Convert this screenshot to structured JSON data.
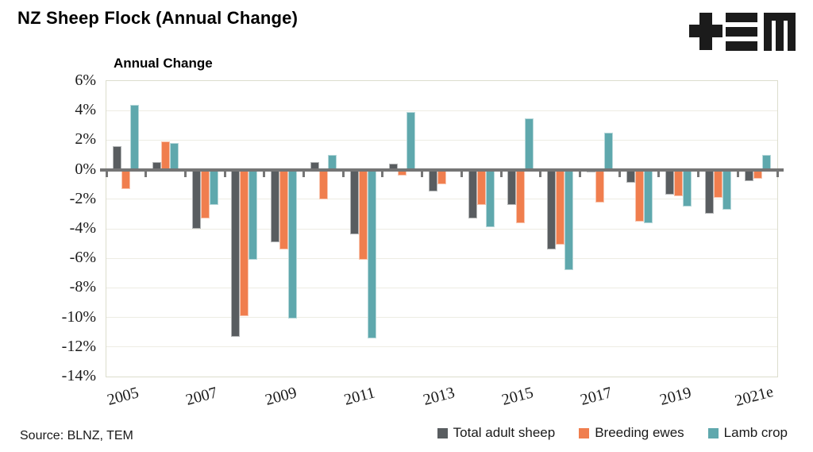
{
  "page": {
    "title": "NZ Sheep Flock (Annual Change)",
    "source": "Source: BLNZ, TEM",
    "logo_name": "TEM"
  },
  "chart_data": {
    "type": "bar",
    "title": "Annual Change",
    "categories": [
      "2005",
      "2006",
      "2007",
      "2008",
      "2009",
      "2010",
      "2011",
      "2012",
      "2013",
      "2014",
      "2015",
      "2016",
      "2017",
      "2018",
      "2019",
      "2020",
      "2021e"
    ],
    "x_tick_labels": [
      "2005",
      "2007",
      "2009",
      "2011",
      "2013",
      "2015",
      "2017",
      "2019",
      "2021e"
    ],
    "y_tick_labels": [
      "6%",
      "4%",
      "2%",
      "0%",
      "-2%",
      "-4%",
      "-6%",
      "-8%",
      "-10%",
      "-12%",
      "-14%"
    ],
    "ylim": [
      -14,
      6
    ],
    "y_tick_step": 2,
    "grid": true,
    "legend_position": "bottom-right",
    "ylabel": "",
    "xlabel": "",
    "colors": {
      "axis_line": "#757575",
      "gridline": "#edece3",
      "plot_border": "#dcddcd"
    },
    "series": [
      {
        "name": "Total adult sheep",
        "color": "#595d60",
        "values": [
          1.6,
          0.5,
          -4.0,
          -11.3,
          -4.9,
          0.5,
          -4.4,
          0.4,
          -1.5,
          -3.3,
          -2.4,
          -5.4,
          -0.2,
          -0.9,
          -1.7,
          -3.0,
          -0.8
        ]
      },
      {
        "name": "Breeding ewes",
        "color": "#f07e4e",
        "values": [
          -1.3,
          1.9,
          -3.3,
          -9.9,
          -5.4,
          -2.0,
          -6.1,
          -0.4,
          -1.0,
          -2.4,
          -3.6,
          -5.1,
          -2.2,
          -3.5,
          -1.8,
          -1.9,
          -0.6
        ]
      },
      {
        "name": "Lamb crop",
        "color": "#5fa8ad",
        "values": [
          4.4,
          1.8,
          -2.4,
          -6.1,
          -10.1,
          1.0,
          -11.4,
          3.9,
          0.0,
          -3.9,
          3.5,
          -6.8,
          2.5,
          -3.6,
          -2.5,
          -2.7,
          1.0
        ]
      }
    ]
  }
}
